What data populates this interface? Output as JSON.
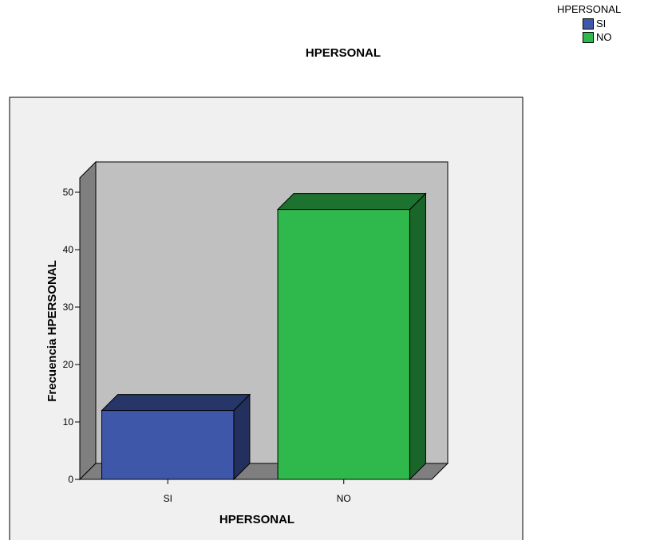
{
  "chart_data": {
    "type": "bar",
    "title": "HPERSONAL",
    "categories": [
      "SI",
      "NO"
    ],
    "values": [
      12,
      47
    ],
    "xlabel": "HPERSONAL",
    "ylabel": "Frecuencia HPERSONAL",
    "ylim": [
      0,
      50
    ],
    "yticks": [
      0,
      10,
      20,
      30,
      40,
      50
    ],
    "legend_title": "HPERSONAL",
    "legend_position": "top-right",
    "series_colors": [
      "#3f57a9",
      "#2fb84c"
    ],
    "three_d": true,
    "grid": false
  }
}
